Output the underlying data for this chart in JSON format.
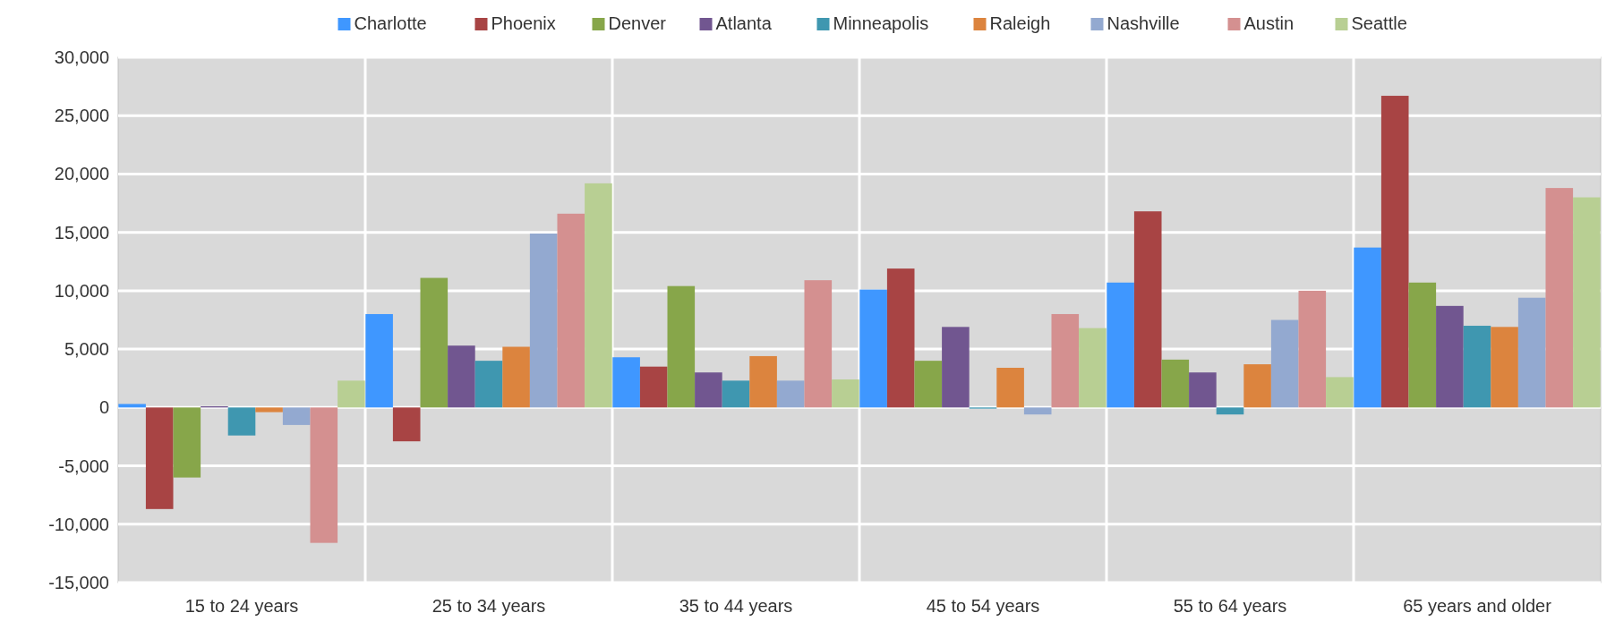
{
  "chart_data": {
    "type": "bar",
    "categories": [
      "15 to 24 years",
      "25 to 34 years",
      "35 to 44 years",
      "45 to 54 years",
      "55 to 64 years",
      "65 years and older"
    ],
    "series": [
      {
        "name": "Charlotte",
        "color": "#3f97ff",
        "values": [
          300,
          8000,
          4300,
          10100,
          10700,
          13700
        ]
      },
      {
        "name": "Phoenix",
        "color": "#a84444",
        "values": [
          -8700,
          -2900,
          3500,
          11900,
          16800,
          26700
        ]
      },
      {
        "name": "Denver",
        "color": "#87a64a",
        "values": [
          -6000,
          11100,
          10400,
          4000,
          4100,
          10700
        ]
      },
      {
        "name": "Atlanta",
        "color": "#715690",
        "values": [
          100,
          5300,
          3000,
          6900,
          3000,
          8700
        ]
      },
      {
        "name": "Minneapolis",
        "color": "#3f97b0",
        "values": [
          -2400,
          4000,
          2300,
          -100,
          -600,
          7000
        ]
      },
      {
        "name": "Raleigh",
        "color": "#dc843e",
        "values": [
          -400,
          5200,
          4400,
          3400,
          3700,
          6900
        ]
      },
      {
        "name": "Nashville",
        "color": "#93a9d0",
        "values": [
          -1500,
          14900,
          2300,
          -600,
          7500,
          9400
        ]
      },
      {
        "name": "Austin",
        "color": "#d49090",
        "values": [
          -11600,
          16600,
          10900,
          8000,
          10000,
          18800
        ]
      },
      {
        "name": "Seattle",
        "color": "#b8cf93",
        "values": [
          2300,
          19200,
          2400,
          6800,
          2600,
          18000
        ]
      }
    ],
    "ylim": [
      -15000,
      30000
    ],
    "yticks": [
      {
        "value": -15000,
        "label": "-15,000"
      },
      {
        "value": -10000,
        "label": "-10,000"
      },
      {
        "value": -5000,
        "label": "-5,000"
      },
      0,
      {
        "value": 5000,
        "label": "5,000"
      },
      {
        "value": 10000,
        "label": "10,000"
      },
      {
        "value": 15000,
        "label": "15,000"
      },
      {
        "value": 20000,
        "label": "20,000"
      },
      {
        "value": 25000,
        "label": "25,000"
      },
      {
        "value": 30000,
        "label": "30,000"
      }
    ],
    "grid": true,
    "legend": "top"
  }
}
